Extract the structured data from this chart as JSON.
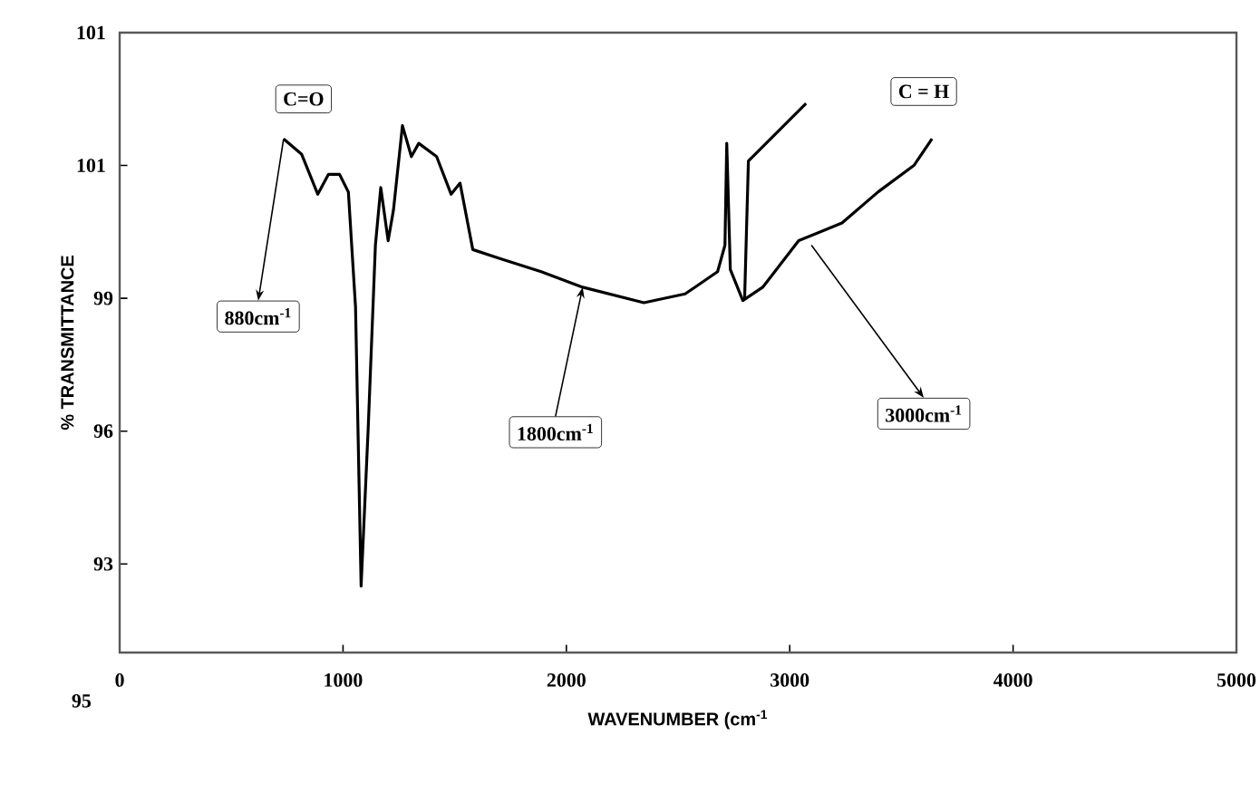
{
  "chart_data": {
    "type": "line",
    "xlabel": "WAVENUMBER (cm$^{-1}$",
    "ylabel": "% TRANSMITTANCE",
    "xlim": [
      0,
      5000
    ],
    "xticks": [
      0,
      1000,
      2000,
      3000,
      4000,
      5000
    ],
    "ylim": [
      91,
      105
    ],
    "yticks": [
      93,
      96,
      99,
      {
        "value": 102,
        "label": null
      }
    ],
    "grid": false,
    "marker": "none",
    "series": [
      {
        "color": "#000000",
        "x": [
          734,
          815,
          887,
          935,
          984,
          1024,
          1056,
          1081,
          1113,
          1145,
          1169,
          1202,
          1226,
          1266,
          1306,
          1339,
          1419,
          1484,
          1524,
          1581,
          1702,
          1887,
          2073,
          2347,
          2532,
          2677,
          2710,
          2718,
          2734,
          2790,
          2879,
          3040,
          3234,
          3395,
          3556,
          3637
        ],
        "values": [
          102.6,
          102.25,
          101.35,
          101.8,
          101.8,
          101.4,
          98.8,
          92.5,
          96.1,
          100.2,
          101.5,
          100.3,
          101.0,
          102.9,
          102.2,
          102.5,
          102.2,
          101.35,
          101.6,
          100.1,
          99.9,
          99.6,
          99.25,
          98.9,
          99.1,
          99.6,
          100.2,
          102.5,
          99.65,
          98.95,
          99.25,
          100.3,
          100.7,
          101.4,
          102.0,
          102.6
        ]
      },
      {
        "color": "#000000",
        "x": [
          2798,
          2815,
          3073
        ],
        "values": [
          99.0,
          102.1,
          103.4
        ]
      }
    ],
    "annotations": [
      {
        "text": "C=O",
        "x": 734,
        "y": 102.6
      },
      {
        "text": "880cm$^{-1}$",
        "x": 734,
        "y": 102.6
      },
      {
        "text": "1800cm$^{-1}$",
        "x": 2073,
        "y": 99.25
      },
      {
        "text": "3000cm$^{-1}$",
        "x": 3097,
        "y": 100.2
      },
      "C = H",
      "101",
      "101",
      "95"
    ]
  }
}
